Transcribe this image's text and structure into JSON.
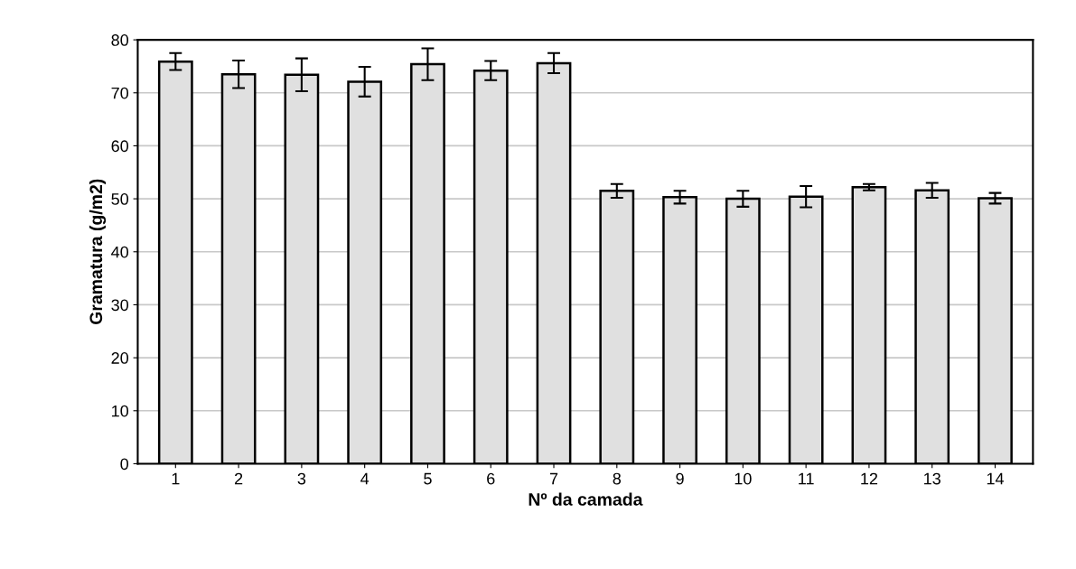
{
  "chart_data": {
    "type": "bar",
    "xlabel": "Nº da camada",
    "ylabel": "Gramatura (g/m2)",
    "categories": [
      "1",
      "2",
      "3",
      "4",
      "5",
      "6",
      "7",
      "8",
      "9",
      "10",
      "11",
      "12",
      "13",
      "14"
    ],
    "values": [
      75.9,
      73.5,
      73.4,
      72.1,
      75.4,
      74.2,
      75.6,
      51.5,
      50.3,
      50.0,
      50.4,
      52.2,
      51.6,
      50.1
    ],
    "errors": [
      1.6,
      2.6,
      3.1,
      2.8,
      3.0,
      1.8,
      1.9,
      1.3,
      1.2,
      1.5,
      2.0,
      0.6,
      1.4,
      1.0
    ],
    "color": "#e0e0e0",
    "ylim": [
      0,
      80
    ],
    "yticks": [
      0,
      10,
      20,
      30,
      40,
      50,
      60,
      70,
      80
    ],
    "grid": "y"
  }
}
